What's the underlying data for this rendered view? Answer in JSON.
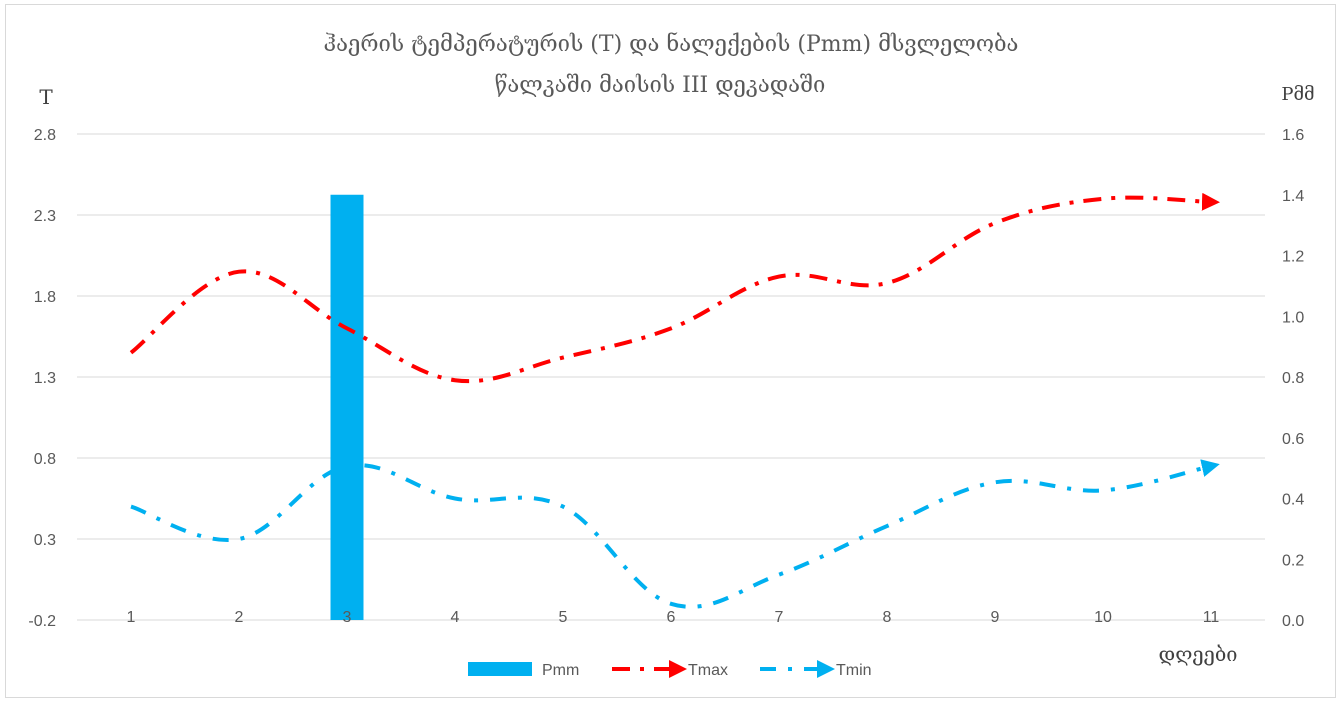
{
  "chart_data": {
    "type": "bar",
    "title_line1": "ჰაერის ტემპერატურის (T) და ნალექების (Pmm)  მსვლელობა",
    "title_line2": "წალკაში მაისის III დეკადაში",
    "ylabel_left": "T",
    "ylabel_right": "Pმმ",
    "xlabel": "დღეები",
    "categories": [
      "1",
      "2",
      "3",
      "4",
      "5",
      "6",
      "7",
      "8",
      "9",
      "10",
      "11"
    ],
    "left_axis": {
      "min": -0.2,
      "max": 2.8,
      "ticks": [
        "2.8",
        "2.3",
        "1.8",
        "1.3",
        "0.8",
        "0.3",
        "-0.2"
      ]
    },
    "right_axis": {
      "min": 0.0,
      "max": 1.6,
      "ticks": [
        "1.6",
        "1.4",
        "1.2",
        "1.0",
        "0.8",
        "0.6",
        "0.4",
        "0.2",
        "0.0"
      ]
    },
    "series": [
      {
        "name": "Pmm",
        "kind": "bar",
        "axis": "right",
        "values": [
          0,
          0,
          1.4,
          0,
          0,
          0,
          0,
          0,
          0,
          0,
          0
        ]
      },
      {
        "name": "Tmax",
        "kind": "line",
        "axis": "left",
        "values": [
          1.45,
          1.95,
          1.6,
          1.28,
          1.42,
          1.6,
          1.92,
          1.88,
          2.25,
          2.4,
          2.38
        ]
      },
      {
        "name": "Tmin",
        "kind": "line",
        "axis": "left",
        "values": [
          0.5,
          0.3,
          0.75,
          0.55,
          0.5,
          -0.1,
          0.08,
          0.38,
          0.65,
          0.6,
          0.75
        ]
      }
    ],
    "colors": {
      "Pmm": "#00b0f0",
      "Tmax": "#ff0000",
      "Tmin": "#00b0f0",
      "grid": "#d9d9d9",
      "text": "#595959"
    },
    "grid": true,
    "legend_position": "bottom"
  }
}
